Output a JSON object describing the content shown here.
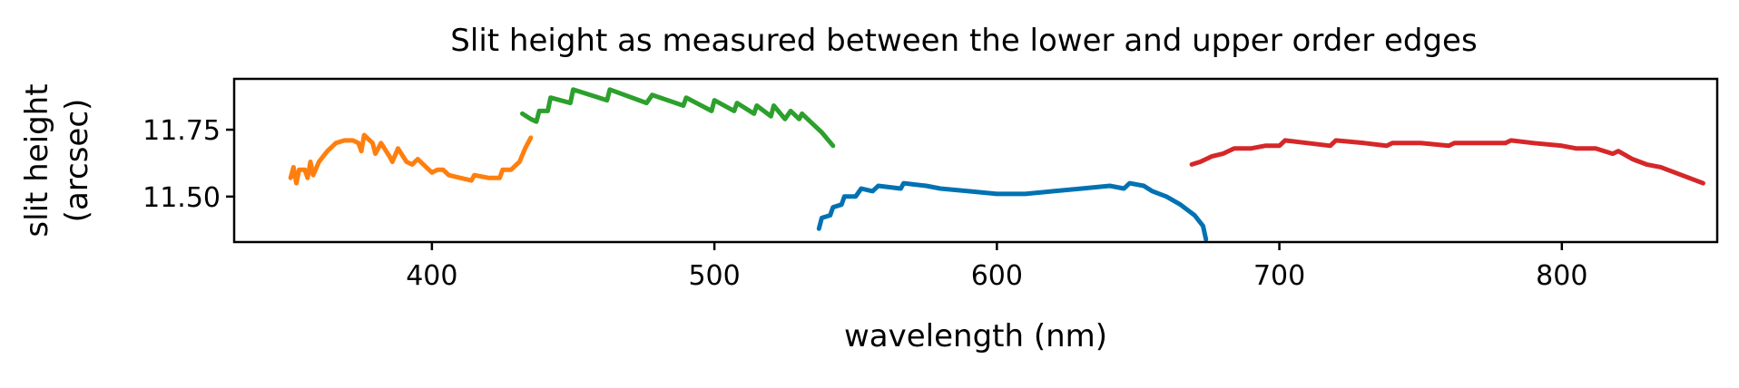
{
  "chart_data": {
    "type": "line",
    "title": "Slit height as measured between the lower and upper order edges",
    "xlabel": "wavelength (nm)",
    "ylabel": [
      "slit height",
      "(arcsec)"
    ],
    "xlim": [
      330,
      855
    ],
    "ylim": [
      11.33,
      11.94
    ],
    "xticks": [
      400,
      500,
      600,
      700,
      800
    ],
    "xtick_labels": [
      "400",
      "500",
      "600",
      "700",
      "800"
    ],
    "yticks": [
      11.5,
      11.75
    ],
    "ytick_labels": [
      "11.50",
      "11.75"
    ],
    "grid": false,
    "series": [
      {
        "color": "#ff7f0e",
        "points": [
          [
            350,
            11.57
          ],
          [
            351,
            11.61
          ],
          [
            352,
            11.55
          ],
          [
            353,
            11.6
          ],
          [
            355,
            11.6
          ],
          [
            356,
            11.57
          ],
          [
            357,
            11.63
          ],
          [
            358,
            11.58
          ],
          [
            360,
            11.63
          ],
          [
            363,
            11.67
          ],
          [
            366,
            11.7
          ],
          [
            369,
            11.71
          ],
          [
            372,
            11.71
          ],
          [
            374,
            11.7
          ],
          [
            375,
            11.67
          ],
          [
            376,
            11.73
          ],
          [
            379,
            11.7
          ],
          [
            380,
            11.66
          ],
          [
            382,
            11.7
          ],
          [
            385,
            11.65
          ],
          [
            386,
            11.63
          ],
          [
            388,
            11.68
          ],
          [
            391,
            11.63
          ],
          [
            393,
            11.62
          ],
          [
            395,
            11.64
          ],
          [
            398,
            11.61
          ],
          [
            400,
            11.59
          ],
          [
            402,
            11.6
          ],
          [
            404,
            11.6
          ],
          [
            406,
            11.58
          ],
          [
            410,
            11.57
          ],
          [
            414,
            11.56
          ],
          [
            415,
            11.58
          ],
          [
            420,
            11.57
          ],
          [
            424,
            11.57
          ],
          [
            425,
            11.6
          ],
          [
            427,
            11.6
          ],
          [
            428,
            11.6
          ],
          [
            430,
            11.62
          ],
          [
            431,
            11.63
          ],
          [
            433,
            11.68
          ],
          [
            435,
            11.72
          ]
        ]
      },
      {
        "color": "#2ca02c",
        "points": [
          [
            432,
            11.81
          ],
          [
            435,
            11.79
          ],
          [
            437,
            11.78
          ],
          [
            438,
            11.82
          ],
          [
            441,
            11.82
          ],
          [
            442,
            11.87
          ],
          [
            449,
            11.85
          ],
          [
            450,
            11.9
          ],
          [
            462,
            11.86
          ],
          [
            463,
            11.9
          ],
          [
            476,
            11.85
          ],
          [
            478,
            11.88
          ],
          [
            489,
            11.84
          ],
          [
            490,
            11.87
          ],
          [
            499,
            11.82
          ],
          [
            500,
            11.86
          ],
          [
            507,
            11.82
          ],
          [
            508,
            11.85
          ],
          [
            514,
            11.81
          ],
          [
            515,
            11.84
          ],
          [
            520,
            11.8
          ],
          [
            521,
            11.84
          ],
          [
            525,
            11.79
          ],
          [
            527,
            11.82
          ],
          [
            530,
            11.79
          ],
          [
            531,
            11.81
          ],
          [
            535,
            11.77
          ],
          [
            538,
            11.74
          ],
          [
            542,
            11.69
          ]
        ]
      },
      {
        "color": "#0072b2",
        "points": [
          [
            537,
            11.38
          ],
          [
            538,
            11.42
          ],
          [
            541,
            11.43
          ],
          [
            542,
            11.46
          ],
          [
            545,
            11.47
          ],
          [
            546,
            11.5
          ],
          [
            550,
            11.5
          ],
          [
            552,
            11.53
          ],
          [
            556,
            11.52
          ],
          [
            558,
            11.54
          ],
          [
            566,
            11.53
          ],
          [
            567,
            11.55
          ],
          [
            575,
            11.54
          ],
          [
            580,
            11.53
          ],
          [
            590,
            11.52
          ],
          [
            600,
            11.51
          ],
          [
            610,
            11.51
          ],
          [
            620,
            11.52
          ],
          [
            630,
            11.53
          ],
          [
            640,
            11.54
          ],
          [
            645,
            11.53
          ],
          [
            647,
            11.55
          ],
          [
            652,
            11.54
          ],
          [
            655,
            11.52
          ],
          [
            660,
            11.5
          ],
          [
            665,
            11.47
          ],
          [
            670,
            11.43
          ],
          [
            673,
            11.39
          ],
          [
            674,
            11.34
          ]
        ]
      },
      {
        "color": "#d62728",
        "points": [
          [
            669,
            11.62
          ],
          [
            672,
            11.63
          ],
          [
            676,
            11.65
          ],
          [
            680,
            11.66
          ],
          [
            684,
            11.68
          ],
          [
            690,
            11.68
          ],
          [
            695,
            11.69
          ],
          [
            700,
            11.69
          ],
          [
            702,
            11.71
          ],
          [
            710,
            11.7
          ],
          [
            718,
            11.69
          ],
          [
            720,
            11.71
          ],
          [
            730,
            11.7
          ],
          [
            738,
            11.69
          ],
          [
            740,
            11.7
          ],
          [
            750,
            11.7
          ],
          [
            760,
            11.69
          ],
          [
            762,
            11.7
          ],
          [
            770,
            11.7
          ],
          [
            780,
            11.7
          ],
          [
            782,
            11.71
          ],
          [
            790,
            11.7
          ],
          [
            800,
            11.69
          ],
          [
            805,
            11.68
          ],
          [
            812,
            11.68
          ],
          [
            818,
            11.66
          ],
          [
            820,
            11.67
          ],
          [
            825,
            11.64
          ],
          [
            830,
            11.62
          ],
          [
            835,
            11.61
          ],
          [
            840,
            11.59
          ],
          [
            845,
            11.57
          ],
          [
            850,
            11.55
          ]
        ]
      }
    ]
  }
}
